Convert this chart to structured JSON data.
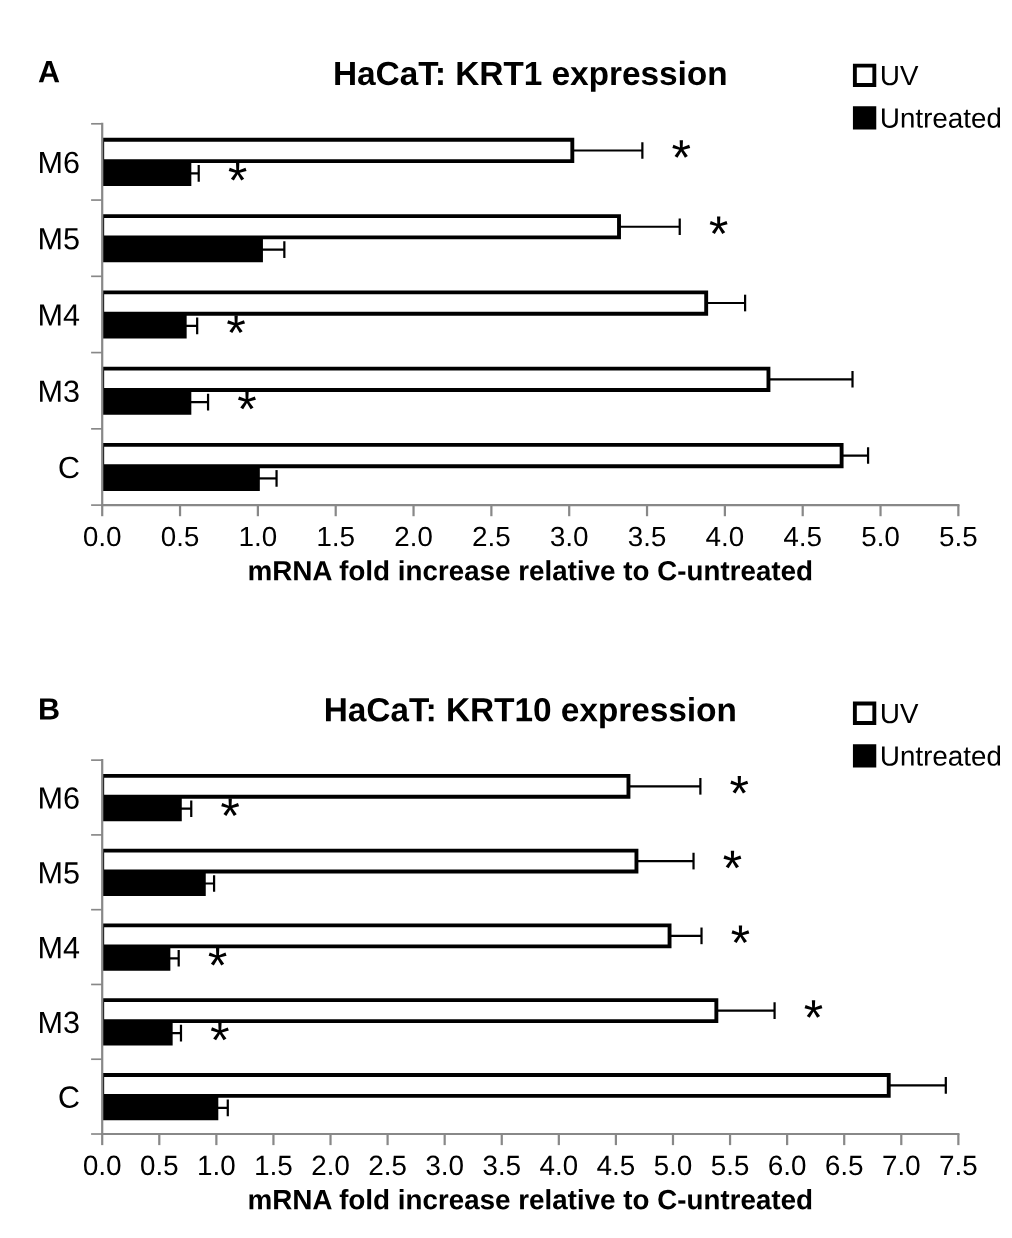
{
  "chart_data": [
    {
      "type": "bar",
      "orientation": "horizontal",
      "title": "HaCaT: KRT1 expression",
      "xlabel": "mRNA fold increase relative to C-untreated",
      "categories": [
        "M6",
        "M5",
        "M4",
        "M3",
        "C"
      ],
      "series": [
        {
          "name": "UV",
          "color": "#ffffff",
          "values": [
            3.02,
            3.32,
            3.88,
            4.28,
            4.75
          ],
          "errors": [
            0.45,
            0.39,
            0.25,
            0.54,
            0.17
          ]
        },
        {
          "name": "Untreated",
          "color": "#000000",
          "values": [
            0.56,
            1.02,
            0.53,
            0.56,
            1.0
          ],
          "errors": [
            0.06,
            0.15,
            0.08,
            0.12,
            0.12
          ]
        }
      ],
      "xlim": [
        0,
        5.5
      ],
      "xticks": [
        {
          "value": 0,
          "label": "0.0"
        },
        {
          "value": 0.5,
          "label": "0.5"
        },
        {
          "value": 1,
          "label": "1.0"
        },
        {
          "value": 1.5,
          "label": "1.5"
        },
        {
          "value": 2,
          "label": "2.0"
        },
        {
          "value": 2.5,
          "label": "2.5"
        },
        {
          "value": 3,
          "label": "3.0"
        },
        {
          "value": 3.5,
          "label": "3.5"
        },
        {
          "value": 4,
          "label": "4.0"
        },
        {
          "value": 4.5,
          "label": "4.5"
        },
        {
          "value": 5,
          "label": "5.0"
        },
        {
          "value": 5.5,
          "label": "5.5"
        }
      ],
      "legend": "top right",
      "grid": false,
      "annotations": [
        "A",
        {
          "text": "*",
          "x": 3.47,
          "y": "M6"
        },
        {
          "text": "*",
          "x": 0.62,
          "y": "M6"
        },
        {
          "text": "*",
          "x": 3.71,
          "y": "M5"
        },
        {
          "text": "*",
          "x": 0.61,
          "y": "M4"
        },
        {
          "text": "*",
          "x": 0.68,
          "y": "M3"
        }
      ]
    },
    {
      "type": "bar",
      "orientation": "horizontal",
      "title": "HaCaT: KRT10 expression",
      "xlabel": "mRNA fold increase relative to C-untreated",
      "categories": [
        "M6",
        "M5",
        "M4",
        "M3",
        "C"
      ],
      "series": [
        {
          "name": "UV",
          "color": "#ffffff",
          "values": [
            4.61,
            4.68,
            4.97,
            5.38,
            6.89
          ],
          "errors": [
            0.63,
            0.5,
            0.28,
            0.51,
            0.5
          ]
        },
        {
          "name": "Untreated",
          "color": "#000000",
          "values": [
            0.68,
            0.89,
            0.58,
            0.6,
            1.0
          ],
          "errors": [
            0.1,
            0.09,
            0.09,
            0.09,
            0.1
          ]
        }
      ],
      "xlim": [
        0,
        7.5
      ],
      "xticks": [
        {
          "value": 0,
          "label": "0.0"
        },
        {
          "value": 0.5,
          "label": "0.5"
        },
        {
          "value": 1,
          "label": "1.0"
        },
        {
          "value": 1.5,
          "label": "1.5"
        },
        {
          "value": 2,
          "label": "2.0"
        },
        {
          "value": 2.5,
          "label": "2.5"
        },
        {
          "value": 3,
          "label": "3.0"
        },
        {
          "value": 3.5,
          "label": "3.5"
        },
        {
          "value": 4,
          "label": "4.0"
        },
        {
          "value": 4.5,
          "label": "4.5"
        },
        {
          "value": 5,
          "label": "5.0"
        },
        {
          "value": 5.5,
          "label": "5.5"
        },
        {
          "value": 6,
          "label": "6.0"
        },
        {
          "value": 6.5,
          "label": "6.5"
        },
        {
          "value": 7,
          "label": "7.0"
        },
        {
          "value": 7.5,
          "label": "7.5"
        }
      ],
      "legend": "top right",
      "grid": false,
      "annotations": [
        "B",
        {
          "text": "*",
          "x": 5.24,
          "y": "M6"
        },
        {
          "text": "*",
          "x": 0.78,
          "y": "M6"
        },
        {
          "text": "*",
          "x": 5.18,
          "y": "M5"
        },
        {
          "text": "*",
          "x": 5.25,
          "y": "M4"
        },
        {
          "text": "*",
          "x": 0.67,
          "y": "M4"
        },
        {
          "text": "*",
          "x": 5.89,
          "y": "M3"
        },
        {
          "text": "*",
          "x": 0.69,
          "y": "M3"
        }
      ]
    }
  ]
}
